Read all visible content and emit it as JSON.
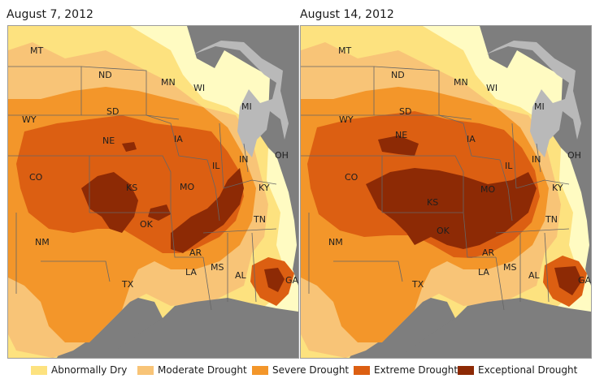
{
  "maps": [
    {
      "title": "August 7, 2012"
    },
    {
      "title": "August 14, 2012"
    }
  ],
  "state_labels": [
    "MT",
    "ND",
    "MN",
    "WI",
    "MI",
    "SD",
    "WY",
    "NE",
    "IA",
    "IN",
    "OH",
    "CO",
    "KS",
    "IL",
    "MO",
    "KY",
    "OK",
    "TN",
    "NM",
    "AR",
    "MS",
    "AL",
    "LA",
    "GA",
    "TX"
  ],
  "legend": [
    {
      "label": "Abnormally Dry",
      "color": "#fde27f"
    },
    {
      "label": "Moderate Drought",
      "color": "#f8c477"
    },
    {
      "label": "Severe Drought",
      "color": "#f3962a"
    },
    {
      "label": "Extreme Drought",
      "color": "#dc5f12"
    },
    {
      "label": "Exceptional Drought",
      "color": "#8d2a05"
    }
  ],
  "colors": {
    "background_land": "#fffbc2",
    "water": "#b9b9b9",
    "outside": "#7e7e7e",
    "borders": "#666666"
  }
}
